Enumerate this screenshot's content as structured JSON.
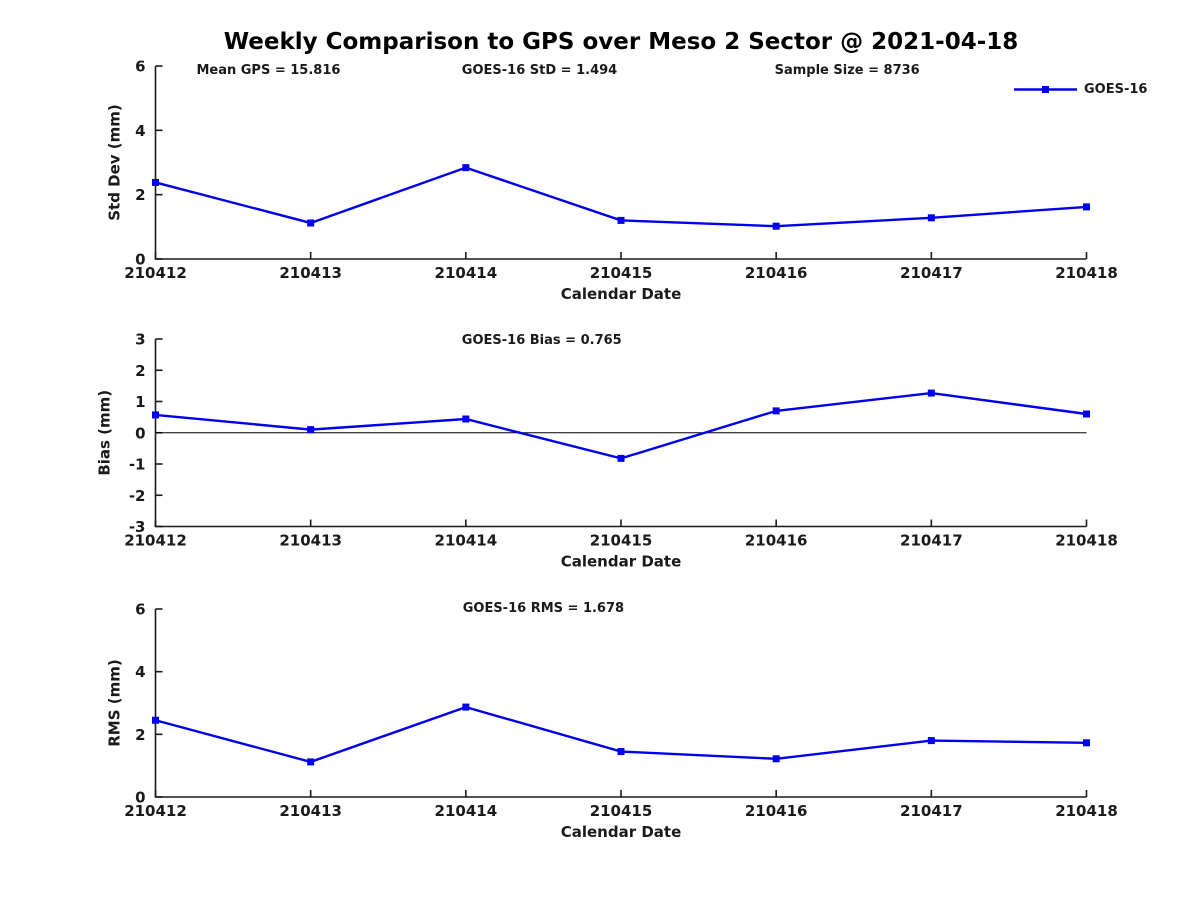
{
  "figure": {
    "title": "Weekly Comparison to GPS over Meso 2 Sector @ 2021-04-18",
    "legend": {
      "label": "GOES-16"
    },
    "line_color": "#0000ee",
    "axis_color": "#1a1a1a",
    "text_color": "#1a1a1a",
    "background_color": "#ffffff"
  },
  "chart_data": [
    {
      "type": "line",
      "categories": [
        "210412",
        "210413",
        "210414",
        "210415",
        "210416",
        "210417",
        "210418"
      ],
      "series": [
        {
          "name": "GOES-16",
          "values": [
            2.38,
            1.12,
            2.84,
            1.2,
            1.02,
            1.28,
            1.62
          ]
        }
      ],
      "xlabel": "Calendar Date",
      "ylabel": "Std Dev (mm)",
      "ylim": [
        0,
        6
      ],
      "yticks": [
        0,
        2,
        4,
        6
      ],
      "grid": false,
      "legend_position": "top-right",
      "zero_line": false,
      "annotations": [
        {
          "text": "Mean GPS = 15.816",
          "xfrac": 0.044
        },
        {
          "text": "GOES-16 StD = 1.494",
          "xfrac": 0.329
        },
        {
          "text": "Sample Size = 8736",
          "xfrac": 0.665
        }
      ]
    },
    {
      "type": "line",
      "categories": [
        "210412",
        "210413",
        "210414",
        "210415",
        "210416",
        "210417",
        "210418"
      ],
      "series": [
        {
          "name": "GOES-16",
          "values": [
            0.57,
            0.1,
            0.44,
            -0.82,
            0.7,
            1.27,
            0.6
          ]
        }
      ],
      "xlabel": "Calendar Date",
      "ylabel": "Bias (mm)",
      "ylim": [
        -3,
        3
      ],
      "yticks": [
        -3,
        -2,
        -1,
        0,
        1,
        2,
        3
      ],
      "grid": false,
      "zero_line": true,
      "annotations": [
        {
          "text": "GOES-16 Bias  = 0.765",
          "xfrac": 0.329
        }
      ]
    },
    {
      "type": "line",
      "categories": [
        "210412",
        "210413",
        "210414",
        "210415",
        "210416",
        "210417",
        "210418"
      ],
      "series": [
        {
          "name": "GOES-16",
          "values": [
            2.45,
            1.12,
            2.87,
            1.45,
            1.22,
            1.8,
            1.73
          ]
        }
      ],
      "xlabel": "Calendar Date",
      "ylabel": "RMS (mm)",
      "ylim": [
        0,
        6
      ],
      "yticks": [
        0,
        2,
        4,
        6
      ],
      "grid": false,
      "zero_line": false,
      "annotations": [
        {
          "text": "GOES-16 RMS = 1.678",
          "xfrac": 0.33
        }
      ]
    }
  ]
}
